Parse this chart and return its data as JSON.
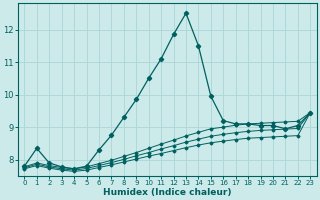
{
  "xlabel": "Humidex (Indice chaleur)",
  "bg_color": "#cceaea",
  "grid_color": "#b0d8d8",
  "line_color": "#006060",
  "xlim": [
    -0.5,
    23.5
  ],
  "ylim": [
    7.5,
    12.8
  ],
  "xticks": [
    0,
    1,
    2,
    3,
    4,
    5,
    6,
    7,
    8,
    9,
    10,
    11,
    12,
    13,
    14,
    15,
    16,
    17,
    18,
    19,
    20,
    21,
    22,
    23
  ],
  "yticks": [
    8,
    9,
    10,
    11,
    12
  ],
  "series": [
    {
      "x": [
        0,
        1,
        2,
        3,
        4,
        5,
        6,
        7,
        8,
        9,
        10,
        11,
        12,
        13,
        14,
        15,
        16,
        17,
        18,
        19,
        20,
        21,
        22,
        23
      ],
      "y": [
        7.8,
        8.35,
        7.9,
        7.78,
        7.72,
        7.8,
        8.3,
        8.75,
        9.3,
        9.85,
        10.5,
        11.1,
        11.85,
        12.5,
        11.5,
        9.95,
        9.2,
        9.1,
        9.1,
        9.05,
        9.05,
        8.95,
        9.05,
        9.45
      ]
    },
    {
      "x": [
        0,
        1,
        2,
        3,
        4,
        5,
        6,
        7,
        8,
        9,
        10,
        11,
        12,
        13,
        14,
        15,
        16,
        17,
        18,
        19,
        20,
        21,
        22,
        23
      ],
      "y": [
        7.78,
        7.9,
        7.82,
        7.76,
        7.72,
        7.78,
        7.88,
        7.98,
        8.1,
        8.22,
        8.35,
        8.48,
        8.6,
        8.73,
        8.84,
        8.95,
        9.0,
        9.06,
        9.1,
        9.12,
        9.14,
        9.16,
        9.18,
        9.45
      ]
    },
    {
      "x": [
        0,
        1,
        2,
        3,
        4,
        5,
        6,
        7,
        8,
        9,
        10,
        11,
        12,
        13,
        14,
        15,
        16,
        17,
        18,
        19,
        20,
        21,
        22,
        23
      ],
      "y": [
        7.75,
        7.86,
        7.78,
        7.72,
        7.68,
        7.73,
        7.82,
        7.91,
        8.01,
        8.12,
        8.22,
        8.33,
        8.43,
        8.54,
        8.63,
        8.72,
        8.78,
        8.83,
        8.87,
        8.9,
        8.92,
        8.94,
        8.96,
        9.45
      ]
    },
    {
      "x": [
        0,
        1,
        2,
        3,
        4,
        5,
        6,
        7,
        8,
        9,
        10,
        11,
        12,
        13,
        14,
        15,
        16,
        17,
        18,
        19,
        20,
        21,
        22,
        23
      ],
      "y": [
        7.72,
        7.82,
        7.74,
        7.68,
        7.64,
        7.68,
        7.76,
        7.84,
        7.93,
        8.02,
        8.11,
        8.19,
        8.28,
        8.37,
        8.45,
        8.52,
        8.57,
        8.62,
        8.66,
        8.68,
        8.7,
        8.72,
        8.74,
        9.45
      ]
    }
  ]
}
